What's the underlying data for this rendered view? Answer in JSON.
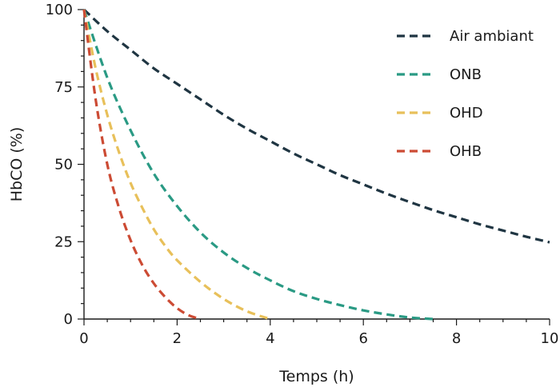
{
  "chart_data": {
    "type": "line",
    "xlabel": "Temps (h)",
    "ylabel": "HbCO (%)",
    "xlim": [
      0,
      10
    ],
    "ylim": [
      0,
      100
    ],
    "x_ticks": [
      0,
      2,
      4,
      6,
      8,
      10
    ],
    "y_ticks": [
      0,
      25,
      50,
      75,
      100
    ],
    "grid": false,
    "legend_position": "top-right",
    "series": [
      {
        "name": "Air ambiant",
        "color": "#1f3542",
        "dash": "dashed",
        "x": [
          0,
          0.5,
          1,
          1.5,
          2,
          2.5,
          3,
          3.5,
          4,
          4.5,
          5,
          5.5,
          6,
          6.5,
          7,
          7.5,
          8,
          8.5,
          9,
          9.5,
          10
        ],
        "y": [
          100,
          93,
          87,
          81,
          76,
          71,
          66,
          61.5,
          57.5,
          53.5,
          50,
          46.5,
          43.5,
          40.5,
          37.8,
          35.2,
          32.9,
          30.6,
          28.6,
          26.6,
          24.8
        ]
      },
      {
        "name": "ONB",
        "color": "#2a9a84",
        "dash": "dashed",
        "x": [
          0,
          0.5,
          1,
          1.5,
          2,
          2.5,
          3,
          3.5,
          4,
          4.5,
          5,
          5.5,
          6,
          6.5,
          7,
          7.5
        ],
        "y": [
          100,
          78,
          61,
          47,
          36.5,
          28,
          21.5,
          16.5,
          12.5,
          9,
          6.5,
          4.5,
          2.8,
          1.5,
          0.5,
          0
        ]
      },
      {
        "name": "OHD",
        "color": "#e8c05a",
        "dash": "dashed",
        "x": [
          0,
          0.25,
          0.5,
          0.75,
          1,
          1.25,
          1.5,
          1.75,
          2,
          2.5,
          3,
          3.5,
          4
        ],
        "y": [
          100,
          81,
          66,
          54,
          44,
          36,
          29,
          23.5,
          19,
          12,
          6.5,
          2.5,
          0
        ]
      },
      {
        "name": "OHB",
        "color": "#cc4b34",
        "dash": "dashed",
        "x": [
          0,
          0.25,
          0.5,
          0.75,
          1,
          1.25,
          1.5,
          1.75,
          2,
          2.25,
          2.5
        ],
        "y": [
          100,
          71,
          50,
          36,
          25.5,
          17.5,
          11.5,
          7,
          3.5,
          1.2,
          0
        ]
      }
    ]
  }
}
